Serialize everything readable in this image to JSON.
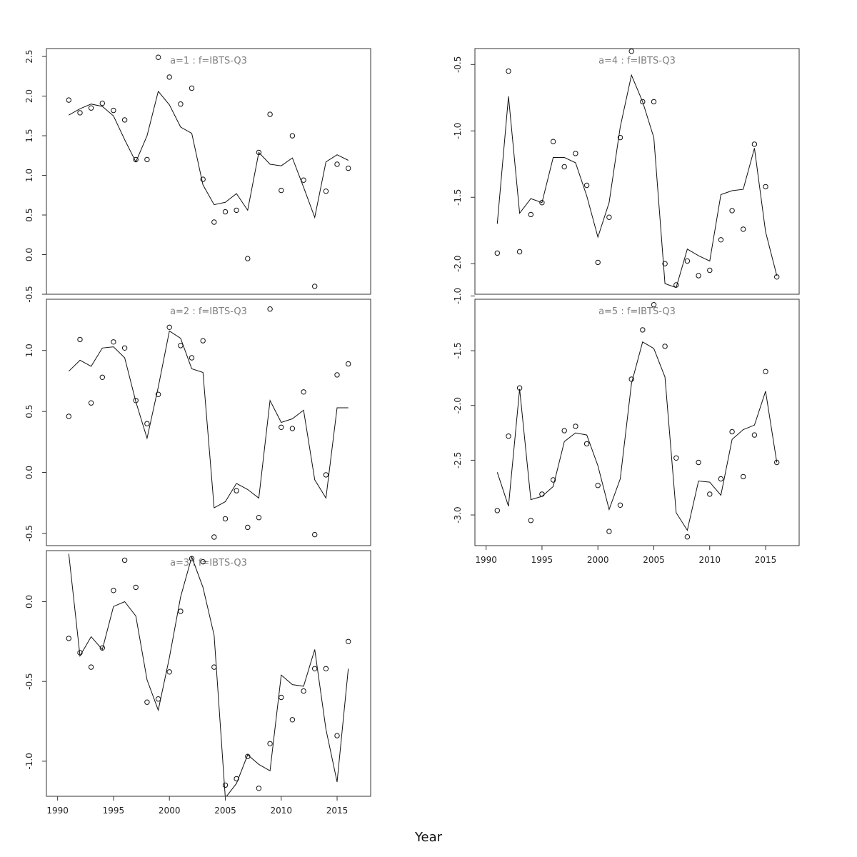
{
  "chart_data": {
    "type": "line",
    "xlabel": "Year",
    "x": [
      1991,
      1992,
      1993,
      1994,
      1995,
      1996,
      1997,
      1998,
      1999,
      2000,
      2001,
      2002,
      2003,
      2004,
      2005,
      2006,
      2007,
      2008,
      2009,
      2010,
      2011,
      2012,
      2013,
      2014,
      2015,
      2016
    ],
    "x_ticks": [
      1990,
      1995,
      2000,
      2005,
      2010,
      2015
    ],
    "panels": [
      {
        "title": "a=1 : f=IBTS-Q3",
        "ylim": [
          -0.5,
          2.6
        ],
        "y_ticks": [
          -0.5,
          0.0,
          0.5,
          1.0,
          1.5,
          2.0,
          2.5
        ],
        "y_tick_labels": [
          "-0.5",
          "0.0",
          "0.5",
          "1.0",
          "1.5",
          "2.0",
          "2.5"
        ],
        "series": [
          {
            "kind": "observed",
            "values": [
              1.95,
              1.79,
              1.85,
              1.91,
              1.82,
              1.7,
              1.2,
              1.2,
              2.49,
              2.24,
              1.9,
              2.1,
              0.95,
              0.41,
              0.54,
              0.56,
              -0.05,
              1.29,
              1.77,
              0.81,
              1.5,
              0.94,
              -0.4,
              0.8,
              1.14,
              1.09
            ]
          },
          {
            "kind": "fitted",
            "values": [
              1.76,
              1.84,
              1.9,
              1.87,
              1.75,
              1.45,
              1.17,
              1.5,
              2.06,
              1.89,
              1.61,
              1.53,
              0.88,
              0.63,
              0.66,
              0.77,
              0.56,
              1.29,
              1.14,
              1.12,
              1.22,
              0.85,
              0.47,
              1.17,
              1.26,
              1.19
            ]
          }
        ]
      },
      {
        "title": "a=2 : f=IBTS-Q3",
        "ylim": [
          -0.6,
          1.42
        ],
        "y_ticks": [
          -0.5,
          0.0,
          0.5,
          1.0
        ],
        "y_tick_labels": [
          "-0.5",
          "0.0",
          "0.5",
          "1.0"
        ],
        "series": [
          {
            "kind": "observed",
            "values": [
              0.46,
              1.09,
              0.57,
              0.78,
              1.07,
              1.02,
              0.59,
              0.4,
              0.64,
              1.19,
              1.04,
              0.94,
              1.08,
              -0.53,
              -0.38,
              -0.15,
              -0.45,
              -0.37,
              1.34,
              0.37,
              0.36,
              0.66,
              -0.51,
              -0.02,
              0.8,
              0.89
            ]
          },
          {
            "kind": "fitted",
            "values": [
              0.83,
              0.92,
              0.87,
              1.02,
              1.03,
              0.94,
              0.58,
              0.28,
              0.7,
              1.16,
              1.1,
              0.85,
              0.82,
              -0.29,
              -0.24,
              -0.09,
              -0.14,
              -0.21,
              0.59,
              0.41,
              0.44,
              0.51,
              -0.06,
              -0.21,
              0.53,
              0.53
            ]
          }
        ]
      },
      {
        "title": "a=3 : f=IBTS-Q3",
        "ylim": [
          -1.22,
          0.32
        ],
        "y_ticks": [
          -1.0,
          -0.5,
          0.0
        ],
        "y_tick_labels": [
          "-1.0",
          "-0.5",
          "0.0"
        ],
        "series": [
          {
            "kind": "observed",
            "values": [
              -0.23,
              -0.32,
              -0.41,
              -0.29,
              0.07,
              0.26,
              0.09,
              -0.63,
              -0.61,
              -0.44,
              -0.06,
              0.27,
              0.25,
              -0.41,
              -1.15,
              -1.11,
              -0.97,
              -1.17,
              -0.89,
              -0.6,
              -0.74,
              -0.56,
              -0.42,
              -0.42,
              -0.84,
              -0.25
            ]
          },
          {
            "kind": "fitted",
            "values": [
              0.3,
              -0.34,
              -0.22,
              -0.3,
              -0.03,
              0.0,
              -0.09,
              -0.49,
              -0.68,
              -0.35,
              0.03,
              0.28,
              0.09,
              -0.21,
              -1.23,
              -1.14,
              -0.96,
              -1.02,
              -1.06,
              -0.46,
              -0.52,
              -0.53,
              -0.3,
              -0.8,
              -1.13,
              -0.42
            ]
          }
        ]
      },
      {
        "title": "a=4 : f=IBTS-Q3",
        "ylim": [
          -2.23,
          -0.38
        ],
        "y_ticks": [
          -2.0,
          -1.5,
          -1.0,
          -0.5
        ],
        "y_tick_labels": [
          "-2.0",
          "-1.5",
          "-1.0",
          "-0.5"
        ],
        "series": [
          {
            "kind": "observed",
            "values": [
              -1.92,
              -0.55,
              -1.91,
              -1.63,
              -1.54,
              -1.08,
              -1.27,
              -1.17,
              -1.41,
              -1.99,
              -1.65,
              -1.05,
              -0.4,
              -0.78,
              -0.78,
              -2.0,
              -2.16,
              -1.98,
              -2.09,
              -2.05,
              -1.82,
              -1.6,
              -1.74,
              -1.1,
              -1.42,
              -2.1
            ]
          },
          {
            "kind": "fitted",
            "values": [
              -1.7,
              -0.74,
              -1.62,
              -1.51,
              -1.54,
              -1.2,
              -1.2,
              -1.24,
              -1.49,
              -1.8,
              -1.54,
              -0.97,
              -0.58,
              -0.78,
              -1.05,
              -2.15,
              -2.18,
              -1.89,
              -1.94,
              -1.98,
              -1.48,
              -1.45,
              -1.44,
              -1.13,
              -1.76,
              -2.09
            ]
          }
        ]
      },
      {
        "title": "a=5 : f=IBTS-Q3",
        "ylim": [
          -3.28,
          -1.03
        ],
        "y_ticks": [
          -3.0,
          -2.5,
          -2.0,
          -1.5,
          -1.0
        ],
        "y_tick_labels": [
          "-3.0",
          "-2.5",
          "-2.0",
          "-1.5",
          "-1.0"
        ],
        "series": [
          {
            "kind": "observed",
            "values": [
              -2.96,
              -2.28,
              -1.84,
              -3.05,
              -2.81,
              -2.68,
              -2.23,
              -2.19,
              -2.35,
              -2.73,
              -3.15,
              -2.91,
              -1.76,
              -1.31,
              -1.08,
              -1.46,
              -2.48,
              -3.2,
              -2.52,
              -2.81,
              -2.67,
              -2.24,
              -2.65,
              -2.27,
              -1.69,
              -2.52
            ]
          },
          {
            "kind": "fitted",
            "values": [
              -2.61,
              -2.92,
              -1.85,
              -2.86,
              -2.83,
              -2.74,
              -2.33,
              -2.25,
              -2.27,
              -2.55,
              -2.95,
              -2.67,
              -1.8,
              -1.42,
              -1.48,
              -1.74,
              -2.98,
              -3.14,
              -2.69,
              -2.7,
              -2.82,
              -2.31,
              -2.22,
              -2.18,
              -1.87,
              -2.52
            ]
          }
        ]
      }
    ]
  }
}
